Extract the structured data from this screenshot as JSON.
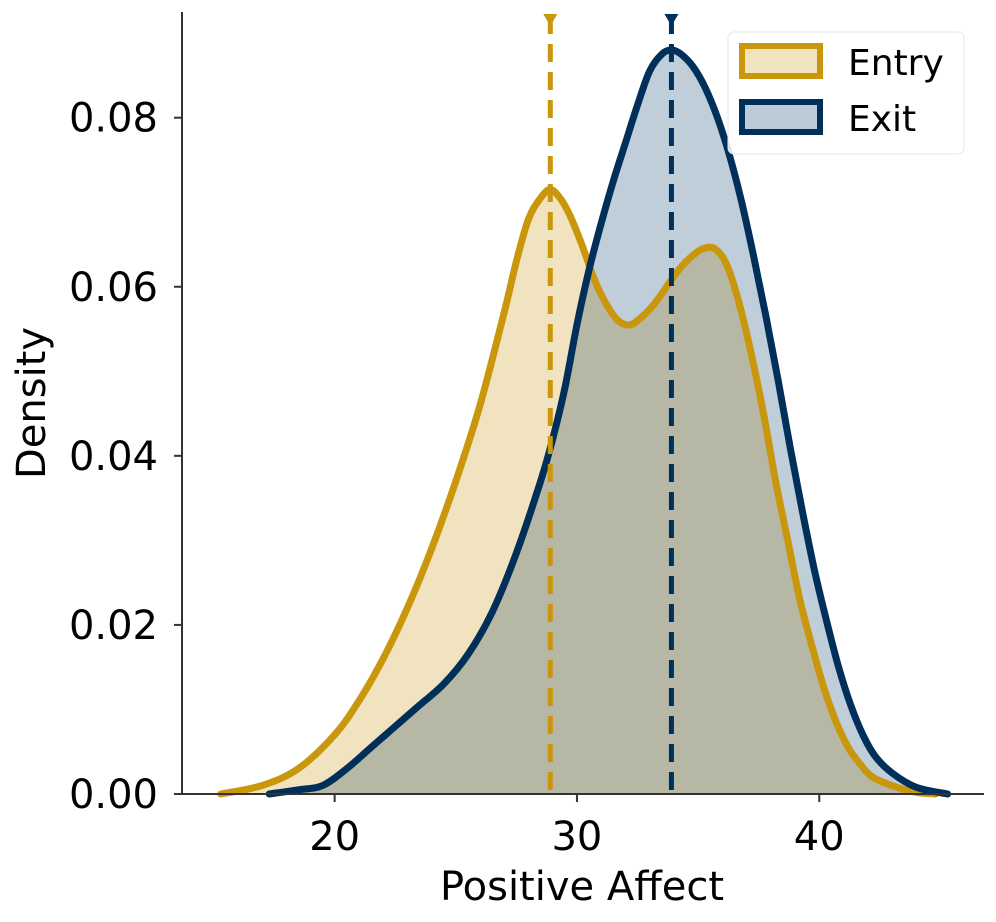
{
  "chart_data": {
    "type": "area",
    "title": "",
    "xlabel": "Positive Affect",
    "ylabel": "Density",
    "xlim": [
      13.7,
      46.8
    ],
    "ylim": [
      0,
      0.0925
    ],
    "x_ticks": [
      "20",
      "30",
      "40"
    ],
    "x_tick_values": [
      20,
      30,
      40
    ],
    "y_ticks": [
      "0.00",
      "0.02",
      "0.04",
      "0.06",
      "0.08"
    ],
    "y_tick_values": [
      0,
      0.02,
      0.04,
      0.06,
      0.08
    ],
    "grid": false,
    "legend_position": "top-right",
    "series": [
      {
        "name": "Entry",
        "line_color": "#C9960C",
        "fill_color": "#F2E3C0",
        "mean": 28.9,
        "points": [
          [
            15.3,
            0.0
          ],
          [
            17.0,
            0.001
          ],
          [
            18.5,
            0.003
          ],
          [
            20.0,
            0.007
          ],
          [
            21.0,
            0.011
          ],
          [
            22.0,
            0.016
          ],
          [
            23.0,
            0.022
          ],
          [
            24.0,
            0.029
          ],
          [
            25.0,
            0.037
          ],
          [
            26.0,
            0.046
          ],
          [
            27.0,
            0.057
          ],
          [
            27.5,
            0.063
          ],
          [
            28.0,
            0.068
          ],
          [
            28.5,
            0.0705
          ],
          [
            28.9,
            0.0715
          ],
          [
            29.3,
            0.0705
          ],
          [
            29.7,
            0.0685
          ],
          [
            30.2,
            0.065
          ],
          [
            30.7,
            0.061
          ],
          [
            31.2,
            0.058
          ],
          [
            31.7,
            0.056
          ],
          [
            32.2,
            0.0555
          ],
          [
            32.7,
            0.0565
          ],
          [
            33.2,
            0.058
          ],
          [
            33.7,
            0.06
          ],
          [
            34.2,
            0.062
          ],
          [
            34.7,
            0.0635
          ],
          [
            35.2,
            0.0645
          ],
          [
            35.7,
            0.0645
          ],
          [
            36.2,
            0.0625
          ],
          [
            36.7,
            0.058
          ],
          [
            37.2,
            0.052
          ],
          [
            37.7,
            0.045
          ],
          [
            38.2,
            0.037
          ],
          [
            38.7,
            0.03
          ],
          [
            39.2,
            0.023
          ],
          [
            39.7,
            0.0175
          ],
          [
            40.2,
            0.0125
          ],
          [
            40.7,
            0.0085
          ],
          [
            41.2,
            0.0055
          ],
          [
            41.7,
            0.0035
          ],
          [
            42.2,
            0.002
          ],
          [
            43.0,
            0.001
          ],
          [
            44.0,
            0.0002
          ],
          [
            44.8,
            0.0
          ]
        ]
      },
      {
        "name": "Exit",
        "line_color": "#00305A",
        "fill_color": "#BDCBD8",
        "mean": 33.9,
        "points": [
          [
            17.3,
            0.0
          ],
          [
            18.5,
            0.0005
          ],
          [
            19.5,
            0.001
          ],
          [
            20.5,
            0.003
          ],
          [
            21.5,
            0.0055
          ],
          [
            22.5,
            0.008
          ],
          [
            23.5,
            0.0105
          ],
          [
            24.5,
            0.013
          ],
          [
            25.5,
            0.0165
          ],
          [
            26.5,
            0.0215
          ],
          [
            27.5,
            0.0285
          ],
          [
            28.5,
            0.037
          ],
          [
            29.0,
            0.042
          ],
          [
            29.5,
            0.048
          ],
          [
            30.0,
            0.0555
          ],
          [
            30.5,
            0.062
          ],
          [
            31.0,
            0.0675
          ],
          [
            31.5,
            0.0725
          ],
          [
            32.0,
            0.077
          ],
          [
            32.5,
            0.0815
          ],
          [
            33.0,
            0.0855
          ],
          [
            33.5,
            0.0875
          ],
          [
            33.9,
            0.088
          ],
          [
            34.3,
            0.0875
          ],
          [
            34.8,
            0.086
          ],
          [
            35.3,
            0.0835
          ],
          [
            35.8,
            0.08
          ],
          [
            36.3,
            0.0755
          ],
          [
            36.8,
            0.07
          ],
          [
            37.3,
            0.0635
          ],
          [
            37.8,
            0.0565
          ],
          [
            38.3,
            0.049
          ],
          [
            38.8,
            0.041
          ],
          [
            39.3,
            0.0335
          ],
          [
            39.8,
            0.0265
          ],
          [
            40.3,
            0.0205
          ],
          [
            40.8,
            0.015
          ],
          [
            41.3,
            0.0105
          ],
          [
            41.8,
            0.007
          ],
          [
            42.3,
            0.0045
          ],
          [
            43.0,
            0.0025
          ],
          [
            44.0,
            0.0008
          ],
          [
            45.3,
            0.0
          ]
        ]
      }
    ]
  }
}
